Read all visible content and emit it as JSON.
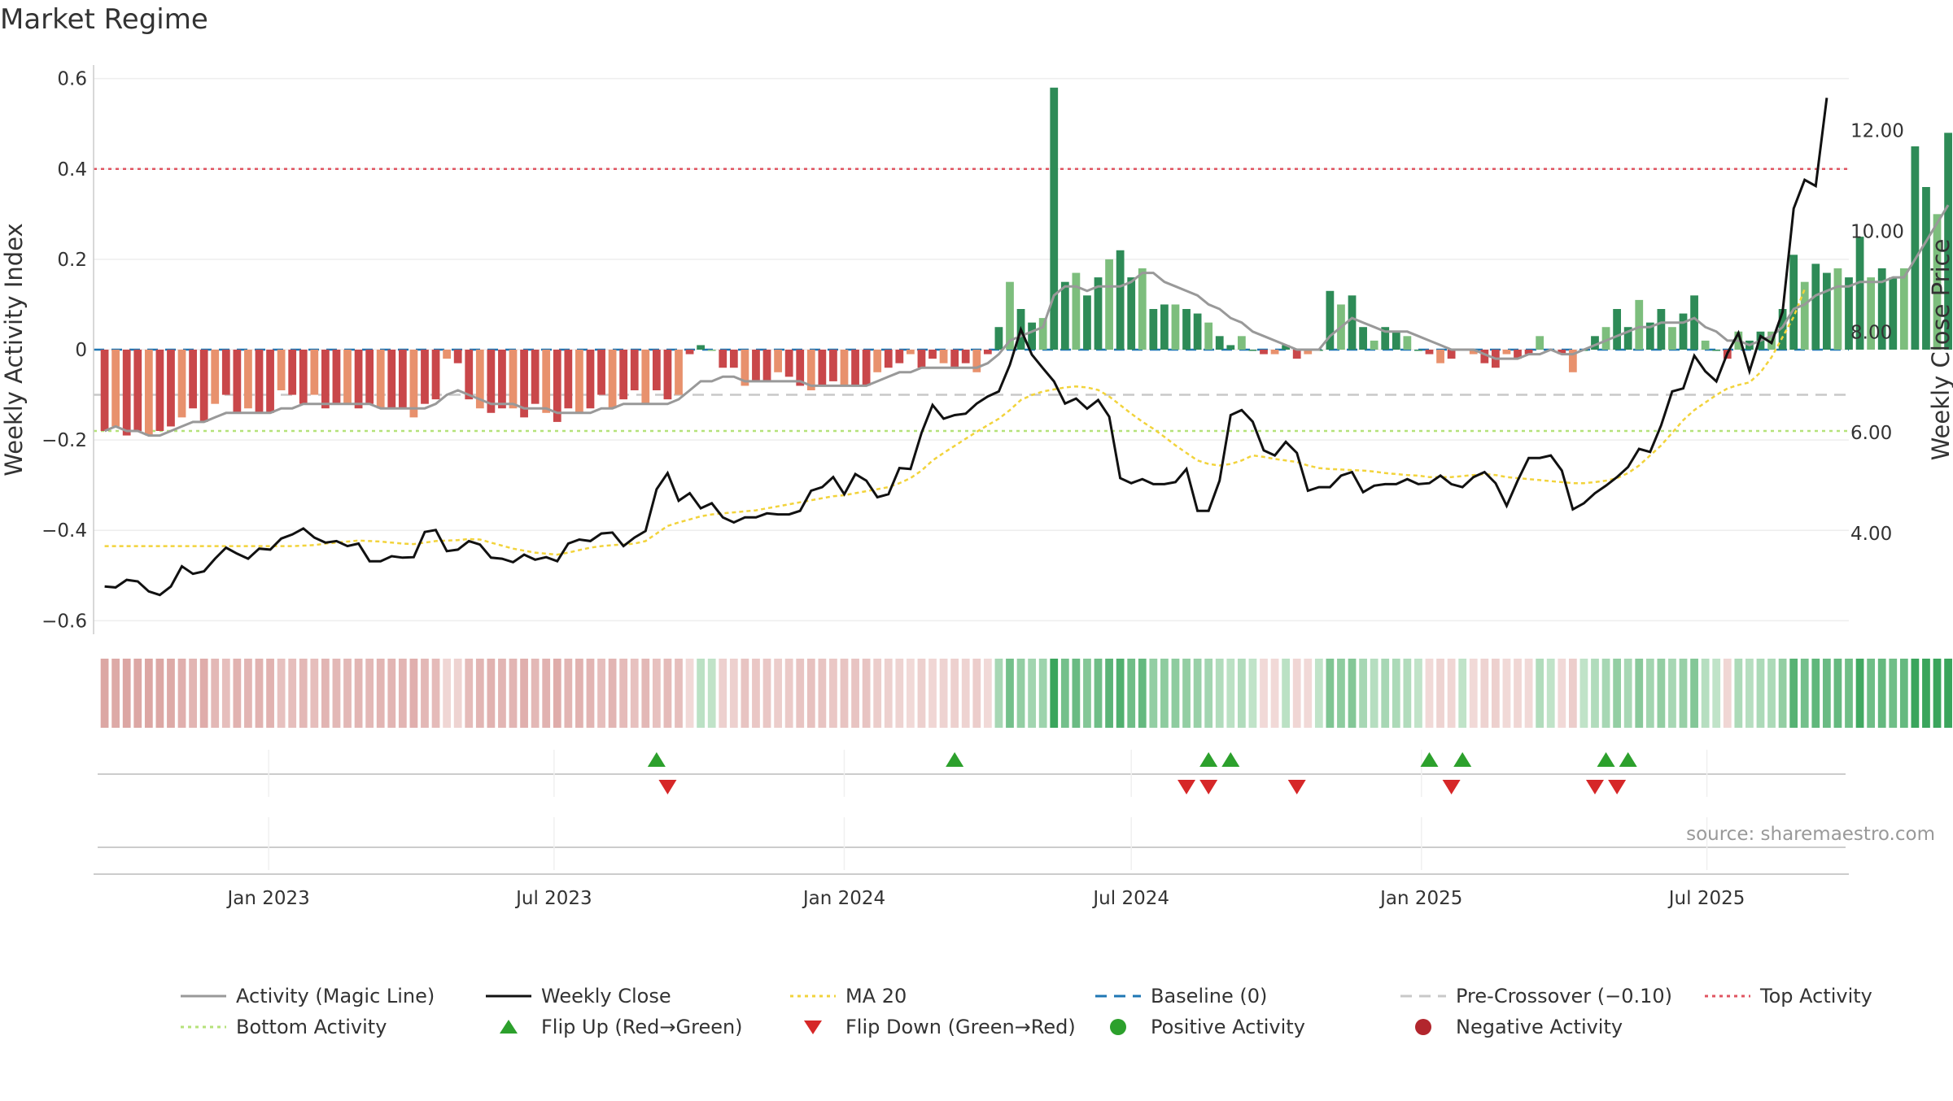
{
  "page": {
    "title": "Market Regime",
    "source": "source: sharemaestro.com"
  },
  "colors": {
    "pos_strong": "#2e8b57",
    "pos_light": "#7dbe7d",
    "neg_strong": "#c9474a",
    "neg_light": "#e8916d",
    "magic_line": "#999999",
    "close": "#111111",
    "ma20": "#f2d33b",
    "baseline": "#1f77b4",
    "pre_crossover": "#c8c8c8",
    "top": "#e05561",
    "bottom": "#b5e27a",
    "flip_up": "#2ca02c",
    "flip_down": "#d62728"
  },
  "chart_data": {
    "type": "bar",
    "title": "Market Regime",
    "ylabel": "Weekly Activity Index",
    "y2label": "Weekly Close Price",
    "ylim": [
      -0.63,
      0.63
    ],
    "y2lim": [
      2.0,
      13.3
    ],
    "xlim": [
      "2022-09-12",
      "2025-09-29"
    ],
    "yticks": [
      "0.6",
      "0.4",
      "0.2",
      "0",
      "−0.2",
      "−0.4",
      "−0.6"
    ],
    "ytick_values": [
      0.6,
      0.4,
      0.2,
      0,
      -0.2,
      -0.4,
      -0.6
    ],
    "y2ticks": [
      "12.00",
      "10.00",
      "8.00",
      "6.00",
      "4.00"
    ],
    "y2tick_values": [
      12,
      10,
      8,
      6,
      4
    ],
    "xticks": [
      "Jan 2023",
      "Jul 2023",
      "Jan 2024",
      "Jul 2024",
      "Jan 2025",
      "Jul 2025"
    ],
    "xtick_dates": [
      "2023-01-01",
      "2023-07-01",
      "2024-01-01",
      "2024-07-01",
      "2025-01-01",
      "2025-07-01"
    ],
    "start_week": "2022-09-19",
    "reference_lines": {
      "baseline": 0,
      "pre_crossover": -0.1,
      "top_activity": 0.4,
      "bottom_activity": -0.18
    },
    "activity": [
      -0.18,
      -0.17,
      -0.19,
      -0.18,
      -0.19,
      -0.18,
      -0.17,
      -0.15,
      -0.13,
      -0.16,
      -0.12,
      -0.1,
      -0.14,
      -0.13,
      -0.14,
      -0.14,
      -0.09,
      -0.1,
      -0.12,
      -0.1,
      -0.13,
      -0.12,
      -0.12,
      -0.13,
      -0.12,
      -0.13,
      -0.13,
      -0.13,
      -0.15,
      -0.12,
      -0.11,
      -0.02,
      -0.03,
      -0.11,
      -0.13,
      -0.14,
      -0.13,
      -0.13,
      -0.15,
      -0.12,
      -0.14,
      -0.16,
      -0.13,
      -0.14,
      -0.13,
      -0.1,
      -0.13,
      -0.11,
      -0.09,
      -0.12,
      -0.09,
      -0.11,
      -0.1,
      -0.01,
      0.01,
      0.0,
      -0.04,
      -0.04,
      -0.08,
      -0.07,
      -0.07,
      -0.05,
      -0.06,
      -0.08,
      -0.09,
      -0.08,
      -0.07,
      -0.08,
      -0.08,
      -0.08,
      -0.05,
      -0.04,
      -0.03,
      -0.01,
      -0.04,
      -0.02,
      -0.03,
      -0.04,
      -0.03,
      -0.05,
      -0.01,
      0.05,
      0.15,
      0.09,
      0.06,
      0.07,
      0.58,
      0.15,
      0.17,
      0.12,
      0.16,
      0.2,
      0.22,
      0.16,
      0.18,
      0.09,
      0.1,
      0.1,
      0.09,
      0.08,
      0.06,
      0.03,
      0.01,
      0.03,
      0.0,
      -0.01,
      -0.01,
      0.01,
      -0.02,
      -0.01,
      0.0,
      0.13,
      0.1,
      0.12,
      0.05,
      0.02,
      0.05,
      0.04,
      0.03,
      0.0,
      -0.01,
      -0.03,
      -0.02,
      0.0,
      -0.01,
      -0.03,
      -0.04,
      -0.01,
      -0.02,
      -0.01,
      0.03,
      0.0,
      -0.01,
      -0.05,
      0.0,
      0.03,
      0.05,
      0.09,
      0.05,
      0.11,
      0.06,
      0.09,
      0.05,
      0.08,
      0.12,
      0.02,
      0.0,
      -0.02,
      0.04,
      0.02,
      0.04,
      0.04,
      0.09,
      0.21,
      0.15,
      0.19,
      0.17,
      0.18,
      0.16,
      0.25,
      0.16,
      0.18,
      0.16,
      0.18,
      0.45,
      0.36,
      0.3,
      0.48
    ],
    "magic_line": [
      -0.18,
      -0.17,
      -0.18,
      -0.18,
      -0.19,
      -0.19,
      -0.18,
      -0.17,
      -0.16,
      -0.16,
      -0.15,
      -0.14,
      -0.14,
      -0.14,
      -0.14,
      -0.14,
      -0.13,
      -0.13,
      -0.12,
      -0.12,
      -0.12,
      -0.12,
      -0.12,
      -0.12,
      -0.12,
      -0.13,
      -0.13,
      -0.13,
      -0.13,
      -0.13,
      -0.12,
      -0.1,
      -0.09,
      -0.1,
      -0.11,
      -0.12,
      -0.12,
      -0.12,
      -0.13,
      -0.13,
      -0.13,
      -0.14,
      -0.14,
      -0.14,
      -0.14,
      -0.13,
      -0.13,
      -0.12,
      -0.12,
      -0.12,
      -0.12,
      -0.12,
      -0.11,
      -0.09,
      -0.07,
      -0.07,
      -0.06,
      -0.06,
      -0.07,
      -0.07,
      -0.07,
      -0.07,
      -0.07,
      -0.07,
      -0.08,
      -0.08,
      -0.08,
      -0.08,
      -0.08,
      -0.08,
      -0.07,
      -0.06,
      -0.05,
      -0.05,
      -0.04,
      -0.04,
      -0.04,
      -0.04,
      -0.04,
      -0.04,
      -0.03,
      -0.01,
      0.02,
      0.03,
      0.04,
      0.05,
      0.12,
      0.14,
      0.14,
      0.13,
      0.14,
      0.14,
      0.14,
      0.15,
      0.17,
      0.17,
      0.15,
      0.14,
      0.13,
      0.12,
      0.1,
      0.09,
      0.07,
      0.06,
      0.04,
      0.03,
      0.02,
      0.01,
      0.0,
      0.0,
      0.0,
      0.03,
      0.05,
      0.07,
      0.06,
      0.05,
      0.04,
      0.04,
      0.04,
      0.03,
      0.02,
      0.01,
      0.0,
      0.0,
      0.0,
      -0.01,
      -0.02,
      -0.02,
      -0.02,
      -0.01,
      -0.01,
      0.0,
      -0.01,
      -0.01,
      0.0,
      0.01,
      0.02,
      0.03,
      0.04,
      0.05,
      0.05,
      0.06,
      0.06,
      0.06,
      0.07,
      0.05,
      0.04,
      0.02,
      0.02,
      0.01,
      0.02,
      0.03,
      0.05,
      0.09,
      0.1,
      0.12,
      0.13,
      0.14,
      0.14,
      0.15,
      0.15,
      0.15,
      0.16,
      0.16,
      0.2,
      0.24,
      0.28,
      0.32
    ],
    "weekly_close": [
      2.95,
      2.93,
      3.08,
      3.05,
      2.85,
      2.78,
      2.95,
      3.35,
      3.2,
      3.25,
      3.5,
      3.72,
      3.6,
      3.5,
      3.7,
      3.68,
      3.9,
      3.98,
      4.1,
      3.92,
      3.82,
      3.85,
      3.75,
      3.8,
      3.45,
      3.45,
      3.55,
      3.52,
      3.53,
      4.03,
      4.07,
      3.65,
      3.68,
      3.85,
      3.78,
      3.52,
      3.5,
      3.43,
      3.58,
      3.48,
      3.53,
      3.45,
      3.8,
      3.88,
      3.85,
      4.0,
      4.02,
      3.75,
      3.92,
      4.05,
      4.88,
      5.2,
      4.65,
      4.8,
      4.5,
      4.6,
      4.32,
      4.22,
      4.32,
      4.32,
      4.4,
      4.38,
      4.38,
      4.45,
      4.85,
      4.92,
      5.12,
      4.78,
      5.18,
      5.05,
      4.72,
      4.78,
      5.3,
      5.28,
      6.0,
      6.55,
      6.28,
      6.35,
      6.38,
      6.58,
      6.72,
      6.82,
      7.35,
      8.05,
      7.55,
      7.28,
      7.02,
      6.58,
      6.68,
      6.48,
      6.65,
      6.32,
      5.1,
      5.0,
      5.08,
      4.98,
      4.98,
      5.02,
      5.28,
      4.45,
      4.45,
      5.05,
      6.35,
      6.45,
      6.22,
      5.65,
      5.55,
      5.82,
      5.6,
      4.85,
      4.92,
      4.92,
      5.15,
      5.22,
      4.82,
      4.95,
      4.98,
      4.98,
      5.08,
      4.98,
      5.0,
      5.15,
      4.98,
      4.92,
      5.12,
      5.22,
      5.0,
      4.55,
      5.05,
      5.5,
      5.5,
      5.55,
      5.25,
      4.48,
      4.6,
      4.8,
      4.95,
      5.12,
      5.32,
      5.68,
      5.62,
      6.15,
      6.82,
      6.88,
      7.53,
      7.22,
      7.02,
      7.58,
      7.98,
      7.22,
      7.92,
      7.78,
      8.4,
      10.45,
      11.02,
      10.9,
      12.65
    ],
    "ma20": [
      3.75,
      3.75,
      3.75,
      3.75,
      3.75,
      3.75,
      3.75,
      3.75,
      3.75,
      3.75,
      3.75,
      3.75,
      3.75,
      3.75,
      3.75,
      3.75,
      3.75,
      3.75,
      3.76,
      3.77,
      3.8,
      3.82,
      3.84,
      3.86,
      3.85,
      3.84,
      3.82,
      3.8,
      3.79,
      3.82,
      3.85,
      3.86,
      3.87,
      3.89,
      3.88,
      3.82,
      3.76,
      3.7,
      3.66,
      3.62,
      3.6,
      3.58,
      3.62,
      3.67,
      3.72,
      3.75,
      3.77,
      3.78,
      3.8,
      3.85,
      4.0,
      4.15,
      4.22,
      4.28,
      4.34,
      4.38,
      4.4,
      4.42,
      4.44,
      4.46,
      4.5,
      4.54,
      4.58,
      4.62,
      4.66,
      4.7,
      4.74,
      4.76,
      4.8,
      4.84,
      4.88,
      4.92,
      5.0,
      5.1,
      5.25,
      5.45,
      5.6,
      5.74,
      5.88,
      6.02,
      6.15,
      6.28,
      6.45,
      6.65,
      6.75,
      6.82,
      6.86,
      6.9,
      6.92,
      6.9,
      6.85,
      6.72,
      6.55,
      6.38,
      6.22,
      6.08,
      5.92,
      5.75,
      5.6,
      5.45,
      5.38,
      5.35,
      5.38,
      5.45,
      5.55,
      5.52,
      5.48,
      5.45,
      5.42,
      5.35,
      5.3,
      5.28,
      5.27,
      5.26,
      5.25,
      5.23,
      5.2,
      5.18,
      5.16,
      5.15,
      5.12,
      5.12,
      5.12,
      5.14,
      5.16,
      5.18,
      5.16,
      5.12,
      5.1,
      5.08,
      5.06,
      5.04,
      5.02,
      5.0,
      5.0,
      5.02,
      5.05,
      5.1,
      5.2,
      5.35,
      5.55,
      5.75,
      6.0,
      6.25,
      6.45,
      6.6,
      6.75,
      6.88,
      6.95,
      7.0,
      7.2,
      7.5,
      7.9,
      8.3,
      8.85
    ],
    "flip_up": [
      "2023-09-04",
      "2024-03-11",
      "2024-08-19",
      "2024-09-02",
      "2025-01-06",
      "2025-01-27",
      "2025-04-28",
      "2025-05-12"
    ],
    "flip_down": [
      "2023-09-11",
      "2024-08-05",
      "2024-08-19",
      "2024-10-14",
      "2025-01-20",
      "2025-04-21",
      "2025-05-05"
    ],
    "legend_placement": "bottom",
    "grid": true
  },
  "legend": [
    {
      "label": "Activity (Magic Line)",
      "icon": "line",
      "color": "#999999"
    },
    {
      "label": "Weekly Close",
      "icon": "line",
      "color": "#111111"
    },
    {
      "label": "MA 20",
      "icon": "dotted-line",
      "color": "#f2d33b"
    },
    {
      "label": "Baseline (0)",
      "icon": "dashed-line",
      "color": "#1f77b4"
    },
    {
      "label": "Pre-Crossover (−0.10)",
      "icon": "dashed-line",
      "color": "#c8c8c8"
    },
    {
      "label": "Top Activity",
      "icon": "dotted-line",
      "color": "#e05561"
    },
    {
      "label": "Bottom Activity",
      "icon": "dotted-line",
      "color": "#b5e27a"
    },
    {
      "label": "Flip Up (Red→Green)",
      "icon": "triangle-up",
      "color": "#2ca02c"
    },
    {
      "label": "Flip Down (Green→Red)",
      "icon": "triangle-down",
      "color": "#d62728"
    },
    {
      "label": "Positive Activity",
      "icon": "dot",
      "color": "#2ca02c"
    },
    {
      "label": "Negative Activity",
      "icon": "dot",
      "color": "#b2262d"
    }
  ]
}
